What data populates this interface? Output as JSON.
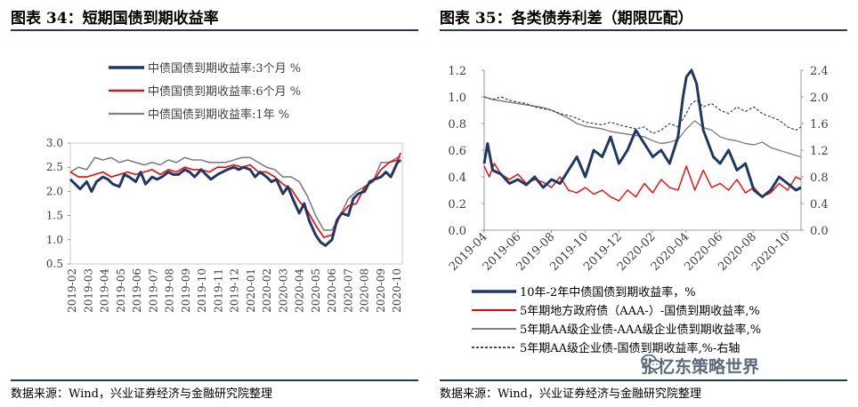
{
  "left": {
    "title": "图表 34：短期国债到期收益率",
    "source": "数据来源：Wind，兴业证券经济与金融研究院整理"
  },
  "right": {
    "title": "图表 35：各类债券利差（期限匹配）",
    "source": "数据来源：Wind，兴业证券经济与金融研究院整理",
    "watermark": "张忆东策略世界"
  },
  "colors": {
    "navy": "#1f3864",
    "red": "#ff0000",
    "gray": "#808080",
    "blue_dash": "#1f3864"
  },
  "chart_data": [
    {
      "type": "line",
      "title": "图表 34：短期国债到期收益率",
      "ylim": [
        0.5,
        3.0
      ],
      "yticks": [
        "0.5",
        "1.0",
        "1.5",
        "2.0",
        "2.5",
        "3.0"
      ],
      "xticks": [
        "2019-02",
        "2019-03",
        "2019-04",
        "2019-05",
        "2019-06",
        "2019-07",
        "2019-08",
        "2019-09",
        "2019-10",
        "2019-11",
        "2019-12",
        "2020-01",
        "2020-02",
        "2020-03",
        "2020-04",
        "2020-05",
        "2020-06",
        "2020-07",
        "2020-08",
        "2020-09",
        "2020-10"
      ],
      "xrange": [
        0,
        20.3
      ],
      "legend_position": "top",
      "series": [
        {
          "name": "中债国债到期收益率:3个月 %",
          "color": "#1f3864",
          "width": 3,
          "x": [
            0,
            0.3,
            0.6,
            1,
            1.3,
            1.6,
            2,
            2.3,
            2.6,
            3,
            3.3,
            3.6,
            4,
            4.3,
            4.6,
            5,
            5.3,
            5.6,
            6,
            6.3,
            6.6,
            7,
            7.3,
            7.6,
            8,
            8.3,
            8.6,
            9,
            9.3,
            9.6,
            10,
            10.3,
            10.6,
            11,
            11.3,
            11.6,
            12,
            12.3,
            12.6,
            13,
            13.3,
            13.6,
            14,
            14.3,
            14.6,
            15,
            15.3,
            15.6,
            16,
            16.3,
            16.6,
            17,
            17.3,
            17.6,
            18,
            18.3,
            18.6,
            19,
            19.3,
            19.6,
            20,
            20.2
          ],
          "y": [
            2.25,
            2.15,
            2.05,
            2.2,
            2.0,
            2.2,
            2.3,
            2.25,
            2.15,
            2.1,
            2.35,
            2.3,
            2.2,
            2.4,
            2.15,
            2.3,
            2.25,
            2.3,
            2.4,
            2.35,
            2.35,
            2.45,
            2.4,
            2.3,
            2.45,
            2.35,
            2.25,
            2.35,
            2.4,
            2.45,
            2.5,
            2.45,
            2.5,
            2.45,
            2.3,
            2.4,
            2.3,
            2.2,
            2.25,
            1.95,
            2.1,
            1.85,
            1.55,
            1.75,
            1.4,
            1.1,
            0.95,
            0.88,
            1.0,
            1.4,
            1.55,
            1.5,
            1.85,
            1.95,
            2.0,
            2.2,
            2.25,
            2.3,
            2.4,
            2.3,
            2.6,
            2.65
          ]
        },
        {
          "name": "中债国债到期收益率:6个月 %",
          "color": "#ff0000",
          "width": 1.6,
          "x": [
            0,
            0.5,
            1,
            1.5,
            2,
            2.5,
            3,
            3.5,
            4,
            4.5,
            5,
            5.5,
            6,
            6.5,
            7,
            7.5,
            8,
            8.5,
            9,
            9.5,
            10,
            10.5,
            11,
            11.5,
            12,
            12.5,
            13,
            13.5,
            14,
            14.5,
            15,
            15.5,
            16,
            16.5,
            17,
            17.5,
            18,
            18.5,
            19,
            19.5,
            20,
            20.2
          ],
          "y": [
            2.4,
            2.3,
            2.3,
            2.35,
            2.4,
            2.3,
            2.35,
            2.4,
            2.35,
            2.4,
            2.45,
            2.35,
            2.45,
            2.4,
            2.5,
            2.45,
            2.45,
            2.4,
            2.5,
            2.5,
            2.55,
            2.5,
            2.55,
            2.4,
            2.4,
            2.3,
            2.15,
            2.05,
            1.8,
            1.6,
            1.3,
            1.05,
            1.1,
            1.5,
            1.7,
            1.75,
            2.1,
            2.2,
            2.45,
            2.6,
            2.65,
            2.8
          ]
        },
        {
          "name": "中债国债到期收益率:1年 %",
          "color": "#808080",
          "width": 1.6,
          "x": [
            0,
            0.5,
            1,
            1.5,
            2,
            2.5,
            3,
            3.5,
            4,
            4.5,
            5,
            5.5,
            6,
            6.5,
            7,
            7.5,
            8,
            8.5,
            9,
            9.5,
            10,
            10.5,
            11,
            11.5,
            12,
            12.5,
            13,
            13.5,
            14,
            14.5,
            15,
            15.5,
            16,
            16.5,
            17,
            17.5,
            18,
            18.5,
            19,
            19.5,
            20,
            20.2
          ],
          "y": [
            2.4,
            2.5,
            2.45,
            2.7,
            2.65,
            2.7,
            2.6,
            2.65,
            2.6,
            2.55,
            2.6,
            2.55,
            2.65,
            2.6,
            2.7,
            2.65,
            2.65,
            2.6,
            2.6,
            2.6,
            2.65,
            2.7,
            2.7,
            2.6,
            2.5,
            2.45,
            2.3,
            2.3,
            2.2,
            1.9,
            1.5,
            1.2,
            1.2,
            1.5,
            1.85,
            2.0,
            2.1,
            2.2,
            2.6,
            2.6,
            2.7,
            2.7
          ]
        }
      ]
    },
    {
      "type": "line",
      "title": "图表 35：各类债券利差（期限匹配）",
      "ylim": [
        0.0,
        1.2
      ],
      "y2lim": [
        0.0,
        2.4
      ],
      "yticks": [
        "0.0",
        "0.2",
        "0.4",
        "0.6",
        "0.8",
        "1.0",
        "1.2"
      ],
      "y2ticks": [
        "0.0",
        "0.4",
        "0.8",
        "1.2",
        "1.6",
        "2.0",
        "2.4"
      ],
      "xticks": [
        "2019-04",
        "2019-06",
        "2019-08",
        "2019-10",
        "2019-12",
        "2020-02",
        "2020-04",
        "2020-06",
        "2020-08",
        "2020-10"
      ],
      "xrange": [
        0,
        18.8
      ],
      "legend_position": "bottom",
      "series": [
        {
          "name": "10年-2年中债国债到期收益率，%",
          "color": "#1f3864",
          "width": 3,
          "axis": "left",
          "x": [
            0,
            0.2,
            0.5,
            1,
            1.5,
            2,
            2.5,
            3,
            3.5,
            4,
            4.5,
            5,
            5.5,
            6,
            6.5,
            7,
            7.5,
            8,
            8.5,
            9,
            9.5,
            10,
            10.5,
            11,
            11.5,
            11.8,
            12,
            12.3,
            12.6,
            13,
            13.3,
            13.6,
            14,
            14.5,
            15,
            15.5,
            16,
            16.5,
            17,
            17.5,
            18,
            18.5,
            18.8
          ],
          "y": [
            0.5,
            0.65,
            0.45,
            0.42,
            0.35,
            0.38,
            0.34,
            0.4,
            0.32,
            0.38,
            0.35,
            0.45,
            0.55,
            0.4,
            0.6,
            0.55,
            0.7,
            0.5,
            0.6,
            0.75,
            0.65,
            0.55,
            0.6,
            0.5,
            0.7,
            1.0,
            1.15,
            1.2,
            1.1,
            0.75,
            0.65,
            0.55,
            0.5,
            0.6,
            0.45,
            0.5,
            0.3,
            0.25,
            0.3,
            0.4,
            0.35,
            0.3,
            0.32
          ]
        },
        {
          "name": "5年期地方政府债（AAA-）-国债到期收益率,%",
          "color": "#ff0000",
          "width": 1.4,
          "axis": "left",
          "x": [
            0,
            0.3,
            0.6,
            1,
            1.5,
            2,
            2.5,
            3,
            3.5,
            4,
            4.5,
            5,
            5.5,
            6,
            6.5,
            7,
            7.5,
            8,
            8.5,
            9,
            9.5,
            10,
            10.5,
            11,
            11.5,
            12,
            12.5,
            13,
            13.5,
            14,
            14.5,
            15,
            15.5,
            16,
            16.5,
            17,
            17.5,
            18,
            18.5,
            18.8
          ],
          "y": [
            0.48,
            0.4,
            0.5,
            0.42,
            0.38,
            0.42,
            0.35,
            0.38,
            0.36,
            0.32,
            0.4,
            0.3,
            0.28,
            0.32,
            0.27,
            0.3,
            0.25,
            0.22,
            0.3,
            0.25,
            0.35,
            0.28,
            0.38,
            0.32,
            0.3,
            0.48,
            0.3,
            0.45,
            0.32,
            0.35,
            0.3,
            0.38,
            0.28,
            0.32,
            0.25,
            0.28,
            0.35,
            0.3,
            0.4,
            0.38
          ]
        },
        {
          "name": "5年期AA级企业债-AAA级企业债到期收益率,%",
          "color": "#808080",
          "width": 1.4,
          "axis": "left",
          "x": [
            0,
            0.5,
            1,
            1.5,
            2,
            2.5,
            3,
            3.5,
            4,
            4.5,
            5,
            5.5,
            6,
            6.5,
            7,
            7.5,
            8,
            8.5,
            9,
            9.5,
            10,
            10.5,
            11,
            11.5,
            12,
            12.5,
            13,
            13.5,
            14,
            14.5,
            15,
            15.5,
            16,
            16.5,
            17,
            17.5,
            18,
            18.5,
            18.8
          ],
          "y": [
            1.0,
            0.98,
            0.97,
            0.96,
            0.95,
            0.94,
            0.93,
            0.92,
            0.9,
            0.87,
            0.84,
            0.8,
            0.78,
            0.77,
            0.76,
            0.74,
            0.73,
            0.72,
            0.71,
            0.7,
            0.67,
            0.65,
            0.66,
            0.68,
            0.76,
            0.82,
            0.77,
            0.75,
            0.7,
            0.68,
            0.67,
            0.65,
            0.64,
            0.66,
            0.62,
            0.6,
            0.58,
            0.56,
            0.55
          ]
        },
        {
          "name": "5年期AA级企业债-国债到期收益率,%-右轴",
          "color": "#1f3864",
          "width": 1.1,
          "dash": true,
          "axis": "right",
          "x": [
            0,
            0.5,
            1,
            1.5,
            2,
            2.5,
            3,
            3.5,
            4,
            4.5,
            5,
            5.5,
            6,
            6.5,
            7,
            7.5,
            8,
            8.5,
            9,
            9.5,
            10,
            10.5,
            11,
            11.5,
            12,
            12.3,
            12.6,
            13,
            13.5,
            14,
            14.5,
            15,
            15.5,
            16,
            16.5,
            17,
            17.5,
            18,
            18.5,
            18.8
          ],
          "y": [
            2.0,
            1.96,
            2.0,
            1.95,
            1.92,
            1.9,
            1.85,
            1.82,
            1.8,
            1.75,
            1.72,
            1.68,
            1.62,
            1.6,
            1.58,
            1.62,
            1.58,
            1.55,
            1.52,
            1.55,
            1.45,
            1.5,
            1.6,
            1.55,
            1.75,
            1.9,
            1.95,
            1.85,
            1.9,
            1.8,
            1.75,
            1.85,
            1.78,
            1.85,
            1.75,
            1.7,
            1.65,
            1.55,
            1.5,
            1.55
          ]
        }
      ]
    }
  ]
}
